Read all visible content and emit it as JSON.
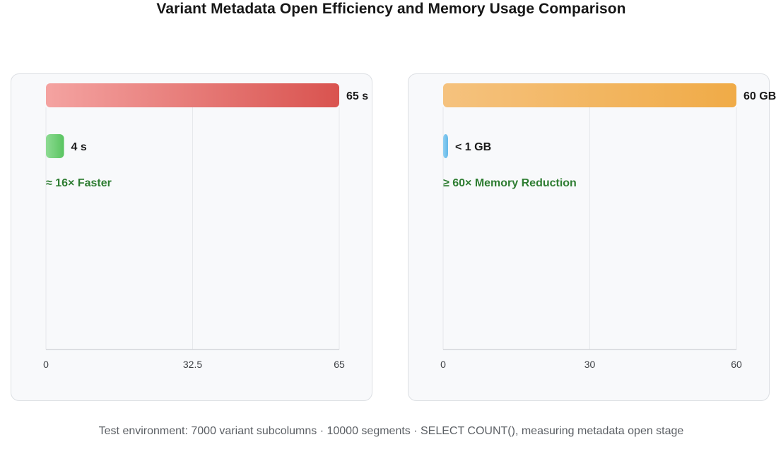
{
  "title": "Variant Metadata Open Efficiency and Memory Usage Comparison",
  "footer": "Test environment: 7000 variant subcolumns · 10000 segments · SELECT COUNT(), measuring metadata open stage",
  "chart_data": [
    {
      "type": "bar",
      "orientation": "horizontal",
      "metric": "metadata open time (s)",
      "xlim": [
        0,
        65
      ],
      "ticks": [
        "0",
        "32.5",
        "65"
      ],
      "tick_values": [
        0,
        32.5,
        65
      ],
      "grid": true,
      "bars": [
        {
          "value": 65,
          "label": "65 s",
          "color_from": "#f4a3a1",
          "color_to": "#d9534f"
        },
        {
          "value": 4,
          "label": "4 s",
          "color_from": "#8edb93",
          "color_to": "#59c460"
        }
      ],
      "annotation": "≈ 16× Faster",
      "annotation_color": "#2e7d32"
    },
    {
      "type": "bar",
      "orientation": "horizontal",
      "metric": "memory usage (GB)",
      "xlim": [
        0,
        60
      ],
      "ticks": [
        "0",
        "30",
        "60"
      ],
      "tick_values": [
        0,
        30,
        60
      ],
      "grid": true,
      "bars": [
        {
          "value": 60,
          "label": "60 GB",
          "color_from": "#f5c27e",
          "color_to": "#f0ab47"
        },
        {
          "value": 0.6,
          "label": "< 1 GB",
          "color_from": "#8ecff2",
          "color_to": "#64b8e8"
        }
      ],
      "annotation": "≥ 60× Memory Reduction",
      "annotation_color": "#2e7d32"
    }
  ]
}
